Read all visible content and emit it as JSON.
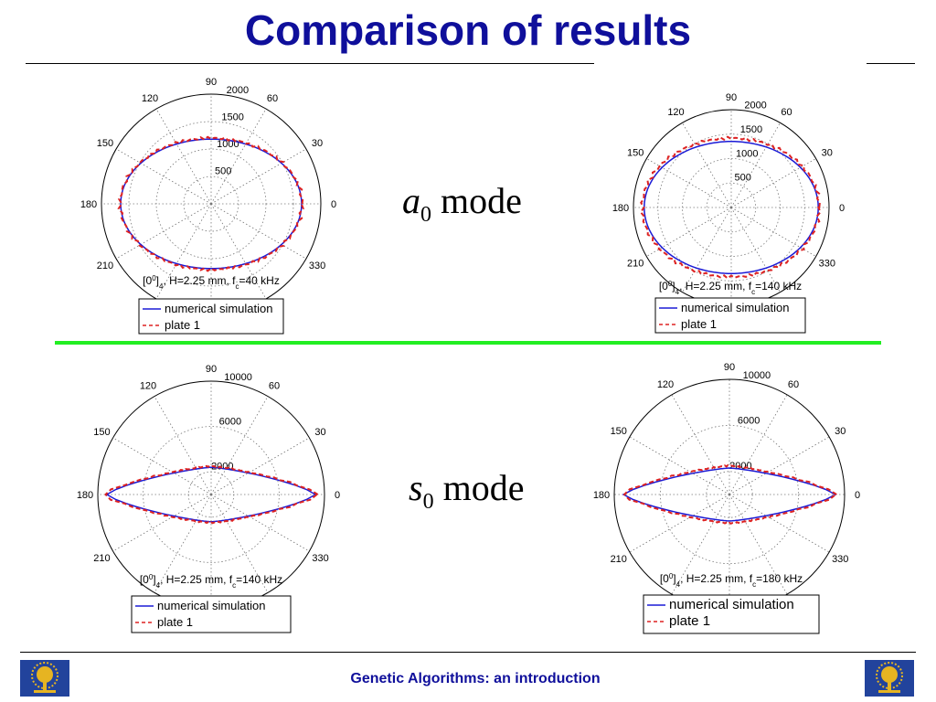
{
  "slide": {
    "title": "Comparison of results",
    "footer": "Genetic Algorithms: an introduction",
    "modes": [
      {
        "sym": "a",
        "sub": "0",
        "word": "mode"
      },
      {
        "sym": "s",
        "sub": "0",
        "word": "mode"
      }
    ]
  },
  "chart_data": [
    {
      "type": "scatter",
      "name": "polar-a0-40kHz",
      "angle_labels": [
        "0",
        "30",
        "60",
        "90",
        "120",
        "150",
        "180",
        "210",
        "330"
      ],
      "radial_ticks": [
        "500",
        "1000",
        "1500",
        "2000"
      ],
      "rmax": 2000,
      "info": "H=2.25 mm, f",
      "info_sub": "c",
      "info_tail": "=40 kHz",
      "ply": "[0",
      "ply_sup": "0",
      "ply_close": "]",
      "ply_sub": "4",
      "series": [
        {
          "name": "numerical simulation",
          "color": "#1b1bd6",
          "style": "solid",
          "radius": {
            "0": 1650,
            "90": 1180,
            "180": 1650
          }
        },
        {
          "name": "plate 1",
          "color": "#dd2222",
          "style": "dashed",
          "radius": {
            "0": 1660,
            "90": 1200,
            "180": 1660
          }
        }
      ]
    },
    {
      "type": "scatter",
      "name": "polar-a0-140kHz",
      "angle_labels": [
        "0",
        "30",
        "60",
        "90",
        "120",
        "150",
        "180",
        "210",
        "330"
      ],
      "radial_ticks": [
        "500",
        "1000",
        "1500",
        "2000"
      ],
      "rmax": 2000,
      "info": "H=2.25 mm, f",
      "info_sub": "c",
      "info_tail": "=140 kHz",
      "ply": "[0",
      "ply_sup": "0",
      "ply_close": "]",
      "ply_sub": "4",
      "series": [
        {
          "name": "numerical simulation",
          "color": "#1b1bd6",
          "style": "solid",
          "radius": {
            "0": 1780,
            "90": 1350,
            "180": 1780
          }
        },
        {
          "name": "plate 1",
          "color": "#dd2222",
          "style": "dashed",
          "radius": {
            "0": 1800,
            "90": 1420,
            "180": 1820
          }
        }
      ]
    },
    {
      "type": "scatter",
      "name": "polar-s0-140kHz",
      "angle_labels": [
        "0",
        "30",
        "60",
        "90",
        "120",
        "150",
        "180",
        "210",
        "330"
      ],
      "radial_ticks": [
        "2000",
        "6000",
        "10000"
      ],
      "rmax": 10000,
      "info": "H=2.25 mm, f",
      "info_sub": "c",
      "info_tail": "=140 kHz",
      "ply": "[0",
      "ply_sup": "0",
      "ply_close": "]",
      "ply_sub": "4",
      "series": [
        {
          "name": "numerical simulation",
          "color": "#1b1bd6",
          "style": "solid",
          "radius": {
            "0": 9200,
            "90": 2400,
            "180": 9200
          }
        },
        {
          "name": "plate 1",
          "color": "#dd2222",
          "style": "dashed",
          "radius": {
            "0": 9400,
            "90": 2500,
            "180": 9500
          }
        }
      ]
    },
    {
      "type": "scatter",
      "name": "polar-s0-180kHz",
      "angle_labels": [
        "0",
        "30",
        "60",
        "90",
        "120",
        "150",
        "180",
        "210",
        "330"
      ],
      "radial_ticks": [
        "2000",
        "6000",
        "10000"
      ],
      "rmax": 10000,
      "info": "H=2.25 mm, f",
      "info_sub": "c",
      "info_tail": "=180 kHz",
      "ply": "[0",
      "ply_sup": "0",
      "ply_close": "]",
      "ply_sub": "4",
      "series": [
        {
          "name": "numerical simulation",
          "color": "#1b1bd6",
          "style": "solid",
          "radius": {
            "0": 9200,
            "90": 2300,
            "180": 9200
          }
        },
        {
          "name": "plate 1",
          "color": "#dd2222",
          "style": "dashed",
          "radius": {
            "0": 9300,
            "90": 2500,
            "180": 9300
          }
        }
      ]
    }
  ],
  "colors": {
    "title": "#0f0f9b",
    "divider": "#22ee22"
  },
  "icons": {
    "logo": "tree-of-life-logo"
  }
}
